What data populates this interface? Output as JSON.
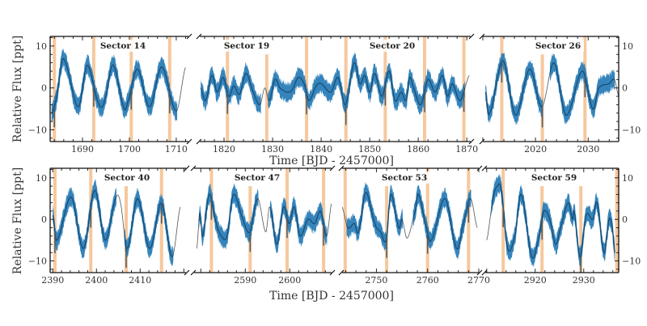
{
  "chart_data": {
    "type": "line",
    "title": "",
    "ylabel": "Relative Flux [ppt]",
    "xlabel": "Time [BJD - 2457000]",
    "ylim": [
      -12.8,
      12.3
    ],
    "yticks": [
      10,
      0,
      -10
    ],
    "ytick_labels": [
      "10",
      "0",
      "−10"
    ],
    "colors": {
      "band": "#1f77b4",
      "line": "#16466b",
      "model": "#555555",
      "transit": "#f3b57c"
    },
    "panels": [
      {
        "row": 0,
        "sectors": [
          "Sector 14"
        ],
        "xlim": [
          1683.1,
          1712.6
        ],
        "xticks": [
          1690,
          1700,
          1710
        ],
        "transits": [
          1684.0,
          1692.4,
          1700.4,
          1708.6
        ],
        "transits_partial": [],
        "points": [
          [
            1683.4,
            -6
          ],
          [
            1684.5,
            -2
          ],
          [
            1685.9,
            7
          ],
          [
            1689.1,
            -4.5
          ],
          [
            1691.0,
            5.4
          ],
          [
            1693.4,
            -3.5
          ],
          [
            1694.6,
            -3.5
          ],
          [
            1696.5,
            5.5
          ],
          [
            1698.8,
            -4.5
          ],
          [
            1699.6,
            -3.5
          ],
          [
            1701.7,
            4.5
          ],
          [
            1704.3,
            -4.5
          ],
          [
            1706.9,
            5
          ],
          [
            1710.0,
            -5.5
          ],
          [
            1712.0,
            5
          ]
        ],
        "model_gaps": [
          [
            1710.2,
            1712.6
          ]
        ]
      },
      {
        "row": 0,
        "sectors": [
          "Sector 19",
          "Sector 20"
        ],
        "xlim": [
          1815.0,
          1870.8
        ],
        "xticks": [
          1820,
          1830,
          1840,
          1850,
          1860,
          1870
        ],
        "transits": [
          1820.7,
          1828.8,
          1837.0,
          1845.1,
          1853.2,
          1861.3,
          1869.4
        ],
        "transits_partial": [
          1828.8
        ],
        "points": [
          [
            1815.2,
            0
          ],
          [
            1816.2,
            -3
          ],
          [
            1817.5,
            3
          ],
          [
            1818.6,
            -1
          ],
          [
            1819.8,
            2.5
          ],
          [
            1821.0,
            -2
          ],
          [
            1822.0,
            0.5
          ],
          [
            1823.2,
            -1.5
          ],
          [
            1824.5,
            3.5
          ],
          [
            1826.0,
            -1
          ],
          [
            1827.4,
            -4
          ],
          [
            1828.4,
            0
          ],
          [
            1829.3,
            -3
          ],
          [
            1830.5,
            2
          ],
          [
            1831.5,
            0
          ],
          [
            1833.0,
            -1
          ],
          [
            1834.0,
            -0.5
          ],
          [
            1835.3,
            2.5
          ],
          [
            1836.5,
            1
          ],
          [
            1837.5,
            -3
          ],
          [
            1839.0,
            0.5
          ],
          [
            1840.0,
            1
          ],
          [
            1842.0,
            -1
          ],
          [
            1843.5,
            2.5
          ],
          [
            1845.0,
            -4
          ],
          [
            1846.8,
            6
          ],
          [
            1848.0,
            1
          ],
          [
            1849.0,
            3
          ],
          [
            1850.0,
            -1
          ],
          [
            1851.0,
            3.5
          ],
          [
            1852.5,
            -2
          ],
          [
            1854.0,
            4
          ],
          [
            1855.2,
            -3
          ],
          [
            1856.5,
            -1
          ],
          [
            1857.5,
            -3
          ],
          [
            1858.2,
            2.5
          ],
          [
            1859.0,
            0
          ],
          [
            1860.5,
            -4
          ],
          [
            1862.0,
            2
          ],
          [
            1863.5,
            -1
          ],
          [
            1865.0,
            3
          ],
          [
            1866.0,
            -2
          ],
          [
            1867.0,
            1
          ],
          [
            1868.5,
            -3
          ],
          [
            1869.3,
            -1
          ],
          [
            1870.5,
            3
          ]
        ],
        "model_gaps": [
          [
            1827.6,
            1829.1
          ],
          [
            1869.6,
            1870.8
          ]
        ]
      },
      {
        "row": 0,
        "sectors": [
          "Sector 26"
        ],
        "xlim": [
          2010.0,
          2035.8
        ],
        "xticks": [
          2020,
          2030
        ],
        "transits": [
          2013.6,
          2021.3,
          2029.4
        ],
        "transits_partial": [
          2021.3
        ],
        "points": [
          [
            2010.5,
            -1
          ],
          [
            2011.2,
            -6.2
          ],
          [
            2013.8,
            6.5
          ],
          [
            2016.2,
            -6.5
          ],
          [
            2018.9,
            4.5
          ],
          [
            2021.2,
            -4.5
          ],
          [
            2023.5,
            6
          ],
          [
            2025.8,
            -6.5
          ],
          [
            2028.9,
            4
          ],
          [
            2030.9,
            -5
          ],
          [
            2032.0,
            0
          ],
          [
            2034.0,
            1
          ],
          [
            2035.0,
            2
          ],
          [
            2035.8,
            -2
          ]
        ],
        "model_gaps": [
          [
            2021.4,
            2022.8
          ],
          [
            2035.1,
            2035.8
          ]
        ]
      },
      {
        "row": 1,
        "sectors": [
          "Sector 40"
        ],
        "xlim": [
          2389.4,
          2420.5
        ],
        "xticks": [
          2390,
          2400,
          2410
        ],
        "transits": [
          2390.5,
          2398.7,
          2406.8,
          2414.9
        ],
        "transits_partial": [
          2406.8
        ],
        "points": [
          [
            2390.0,
            1
          ],
          [
            2390.9,
            -5
          ],
          [
            2394.2,
            5.4
          ],
          [
            2397.0,
            -7
          ],
          [
            2399.6,
            7
          ],
          [
            2402.0,
            -5
          ],
          [
            2404.4,
            5
          ],
          [
            2405.5,
            4
          ],
          [
            2407.0,
            -7
          ],
          [
            2409.4,
            5
          ],
          [
            2412.2,
            -7
          ],
          [
            2414.9,
            4
          ],
          [
            2417.3,
            -9
          ],
          [
            2419.2,
            3
          ]
        ],
        "model_gaps": [
          [
            2404.6,
            2406.4
          ],
          [
            2417.6,
            2419.2
          ]
        ]
      },
      {
        "row": 1,
        "sectors": [
          "Sector 47"
        ],
        "xlim": [
          2578.5,
          2609.4
        ],
        "xticks": [
          2590,
          2600
        ],
        "transits": [
          2582.4,
          2591.1,
          2599.4,
          2607.6
        ],
        "transits_partial": [
          2591.1
        ],
        "points": [
          [
            2579.1,
            -7
          ],
          [
            2579.8,
            1.5
          ],
          [
            2580.4,
            -4
          ],
          [
            2581.9,
            6
          ],
          [
            2583.5,
            -1
          ],
          [
            2584.6,
            -4
          ],
          [
            2585.9,
            -4
          ],
          [
            2587.3,
            6
          ],
          [
            2589.5,
            0
          ],
          [
            2591.0,
            -3
          ],
          [
            2592.8,
            5
          ],
          [
            2594.6,
            -3
          ],
          [
            2595.5,
            3
          ],
          [
            2597.1,
            -6
          ],
          [
            2598.6,
            3
          ],
          [
            2599.9,
            -1
          ],
          [
            2601.0,
            3
          ],
          [
            2602.3,
            -4
          ],
          [
            2604.1,
            0
          ],
          [
            2605.6,
            -1
          ],
          [
            2606.9,
            2
          ],
          [
            2608.3,
            -4
          ],
          [
            2609.4,
            4
          ]
        ],
        "model_gaps": [
          [
            2578.5,
            2579.6
          ],
          [
            2593.0,
            2595.6
          ],
          [
            2608.4,
            2609.4
          ]
        ]
      },
      {
        "row": 1,
        "sectors": [
          "Sector 53"
        ],
        "xlim": [
          2743.3,
          2770.0
        ],
        "xticks": [
          2750,
          2760,
          2770
        ],
        "transits": [
          2743.9,
          2752.0,
          2760.0,
          2768.0
        ],
        "transits_partial": [
          2752.0
        ],
        "points": [
          [
            2743.3,
            3
          ],
          [
            2744.4,
            -2
          ],
          [
            2745.7,
            -1
          ],
          [
            2746.5,
            -3
          ],
          [
            2747.9,
            6.5
          ],
          [
            2749.7,
            -1
          ],
          [
            2750.8,
            -3
          ],
          [
            2751.9,
            -5
          ],
          [
            2752.8,
            6
          ],
          [
            2754.4,
            -2
          ],
          [
            2755.0,
            0
          ],
          [
            2756.0,
            -4.5
          ],
          [
            2757.6,
            2
          ],
          [
            2758.2,
            6
          ],
          [
            2759.8,
            -2
          ],
          [
            2760.7,
            -5
          ],
          [
            2763.4,
            5
          ],
          [
            2765.7,
            -7
          ],
          [
            2767.0,
            -1
          ],
          [
            2768.4,
            5
          ],
          [
            2769.7,
            -2
          ]
        ],
        "model_gaps": [
          [
            2743.3,
            2744.2
          ],
          [
            2755.2,
            2757.2
          ],
          [
            2768.5,
            2770.0
          ]
        ]
      },
      {
        "row": 1,
        "sectors": [
          "Sector 59"
        ],
        "xlim": [
          2909.7,
          2937.2
        ],
        "xticks": [
          2920,
          2930
        ],
        "transits": [
          2913.4,
          2921.4,
          2929.4,
          2936.8
        ],
        "transits_partial": [
          2921.4,
          2929.4
        ],
        "points": [
          [
            2910.0,
            -5
          ],
          [
            2911.3,
            5
          ],
          [
            2912.2,
            8
          ],
          [
            2913.0,
            7
          ],
          [
            2914.3,
            -7
          ],
          [
            2915.8,
            -4
          ],
          [
            2917.1,
            6
          ],
          [
            2919.3,
            -9
          ],
          [
            2920.8,
            -4
          ],
          [
            2921.8,
            2
          ],
          [
            2923.0,
            0
          ],
          [
            2924.2,
            -6
          ],
          [
            2925.2,
            -2
          ],
          [
            2926.8,
            4
          ],
          [
            2927.7,
            0
          ],
          [
            2928.0,
            2
          ],
          [
            2929.2,
            -9
          ],
          [
            2930.5,
            1
          ],
          [
            2931.9,
            0
          ],
          [
            2932.7,
            4
          ],
          [
            2934.2,
            -8
          ],
          [
            2935.2,
            0
          ],
          [
            2935.9,
            -2
          ],
          [
            2936.4,
            -8
          ]
        ],
        "model_gaps": [
          [
            2909.7,
            2911.0
          ]
        ]
      }
    ]
  }
}
